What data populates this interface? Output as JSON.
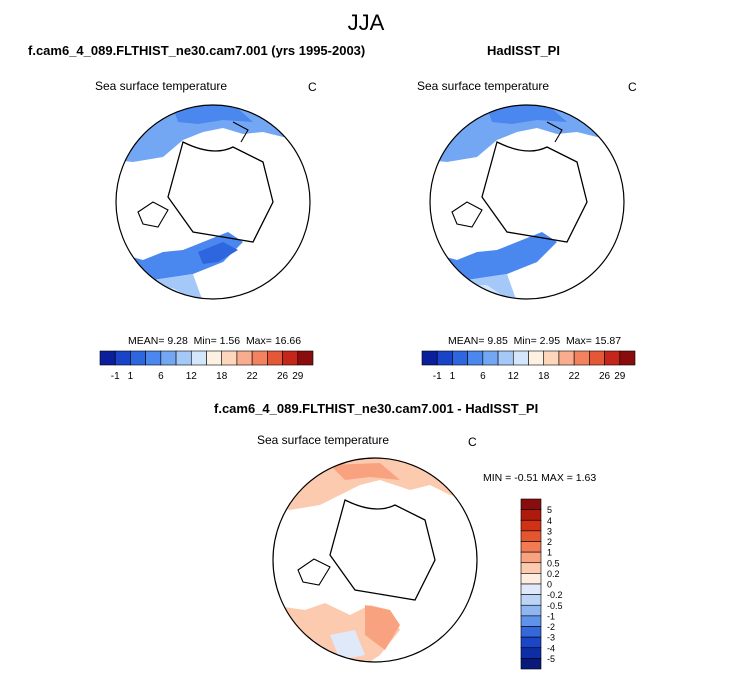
{
  "figure": {
    "title": "JJA"
  },
  "colors": {
    "abs_scale": [
      "#0b1e9b",
      "#1a44c8",
      "#2e66e0",
      "#4a87ee",
      "#73a7f4",
      "#a4c8f8",
      "#d3e6fb",
      "#fdf1e4",
      "#fdd6bc",
      "#f9ad8e",
      "#f2835e",
      "#e45737",
      "#c5261a",
      "#8a0d0d"
    ],
    "diff_scale": [
      "#8a0d0d",
      "#b01a0d",
      "#d13216",
      "#e55630",
      "#f27b53",
      "#f9a27f",
      "#fccaae",
      "#feece0",
      "#dfe9f9",
      "#bcd4f6",
      "#8fb6f1",
      "#5f92ea",
      "#3569db",
      "#1a46c7",
      "#0d2ea6",
      "#091a7a"
    ]
  },
  "panels": [
    {
      "title": "f.cam6_4_089.FLTHIST_ne30.cam7.001 (yrs 1995-2003)",
      "subtitle": "Sea surface temperature",
      "units": "C",
      "stats": {
        "mean_label": "MEAN=",
        "mean": "9.28",
        "min_label": "Min=",
        "min": "1.56",
        "max_label": "Max=",
        "max": "16.66"
      }
    },
    {
      "title": "HadISST_PI",
      "subtitle": "Sea surface temperature",
      "units": "C",
      "stats": {
        "mean_label": "MEAN=",
        "mean": "9.85",
        "min_label": "Min=",
        "min": "2.95",
        "max_label": "Max=",
        "max": "15.87"
      }
    },
    {
      "title": "f.cam6_4_089.FLTHIST_ne30.cam7.001 - HadISST_PI",
      "subtitle": "Sea surface temperature",
      "units": "C",
      "stats": {
        "text": "MIN =  -0.51 MAX =   1.63"
      }
    }
  ],
  "chart_data": [
    {
      "type": "heatmap",
      "projection": "north-polar-stereographic",
      "variable": "Sea surface temperature",
      "units": "C",
      "mean": 9.28,
      "min": 1.56,
      "max": 16.66,
      "colorbar_ticks": [
        "-1",
        "1",
        "6",
        "12",
        "18",
        "22",
        "26",
        "29"
      ],
      "colorbar_levels": [
        -1,
        1,
        3,
        6,
        9,
        12,
        15,
        18,
        20,
        22,
        24,
        26,
        28,
        29
      ]
    },
    {
      "type": "heatmap",
      "projection": "north-polar-stereographic",
      "variable": "Sea surface temperature",
      "units": "C",
      "mean": 9.85,
      "min": 2.95,
      "max": 15.87,
      "colorbar_ticks": [
        "-1",
        "1",
        "6",
        "12",
        "18",
        "22",
        "26",
        "29"
      ],
      "colorbar_levels": [
        -1,
        1,
        3,
        6,
        9,
        12,
        15,
        18,
        20,
        22,
        24,
        26,
        28,
        29
      ]
    },
    {
      "type": "heatmap",
      "projection": "north-polar-stereographic",
      "variable": "Sea surface temperature difference",
      "units": "C",
      "min": -0.51,
      "max": 1.63,
      "colorbar_ticks": [
        "5",
        "4",
        "3",
        "2",
        "1",
        "0.5",
        "0.2",
        "0",
        "-0.2",
        "-0.5",
        "-1",
        "-2",
        "-3",
        "-4",
        "-5"
      ]
    }
  ]
}
